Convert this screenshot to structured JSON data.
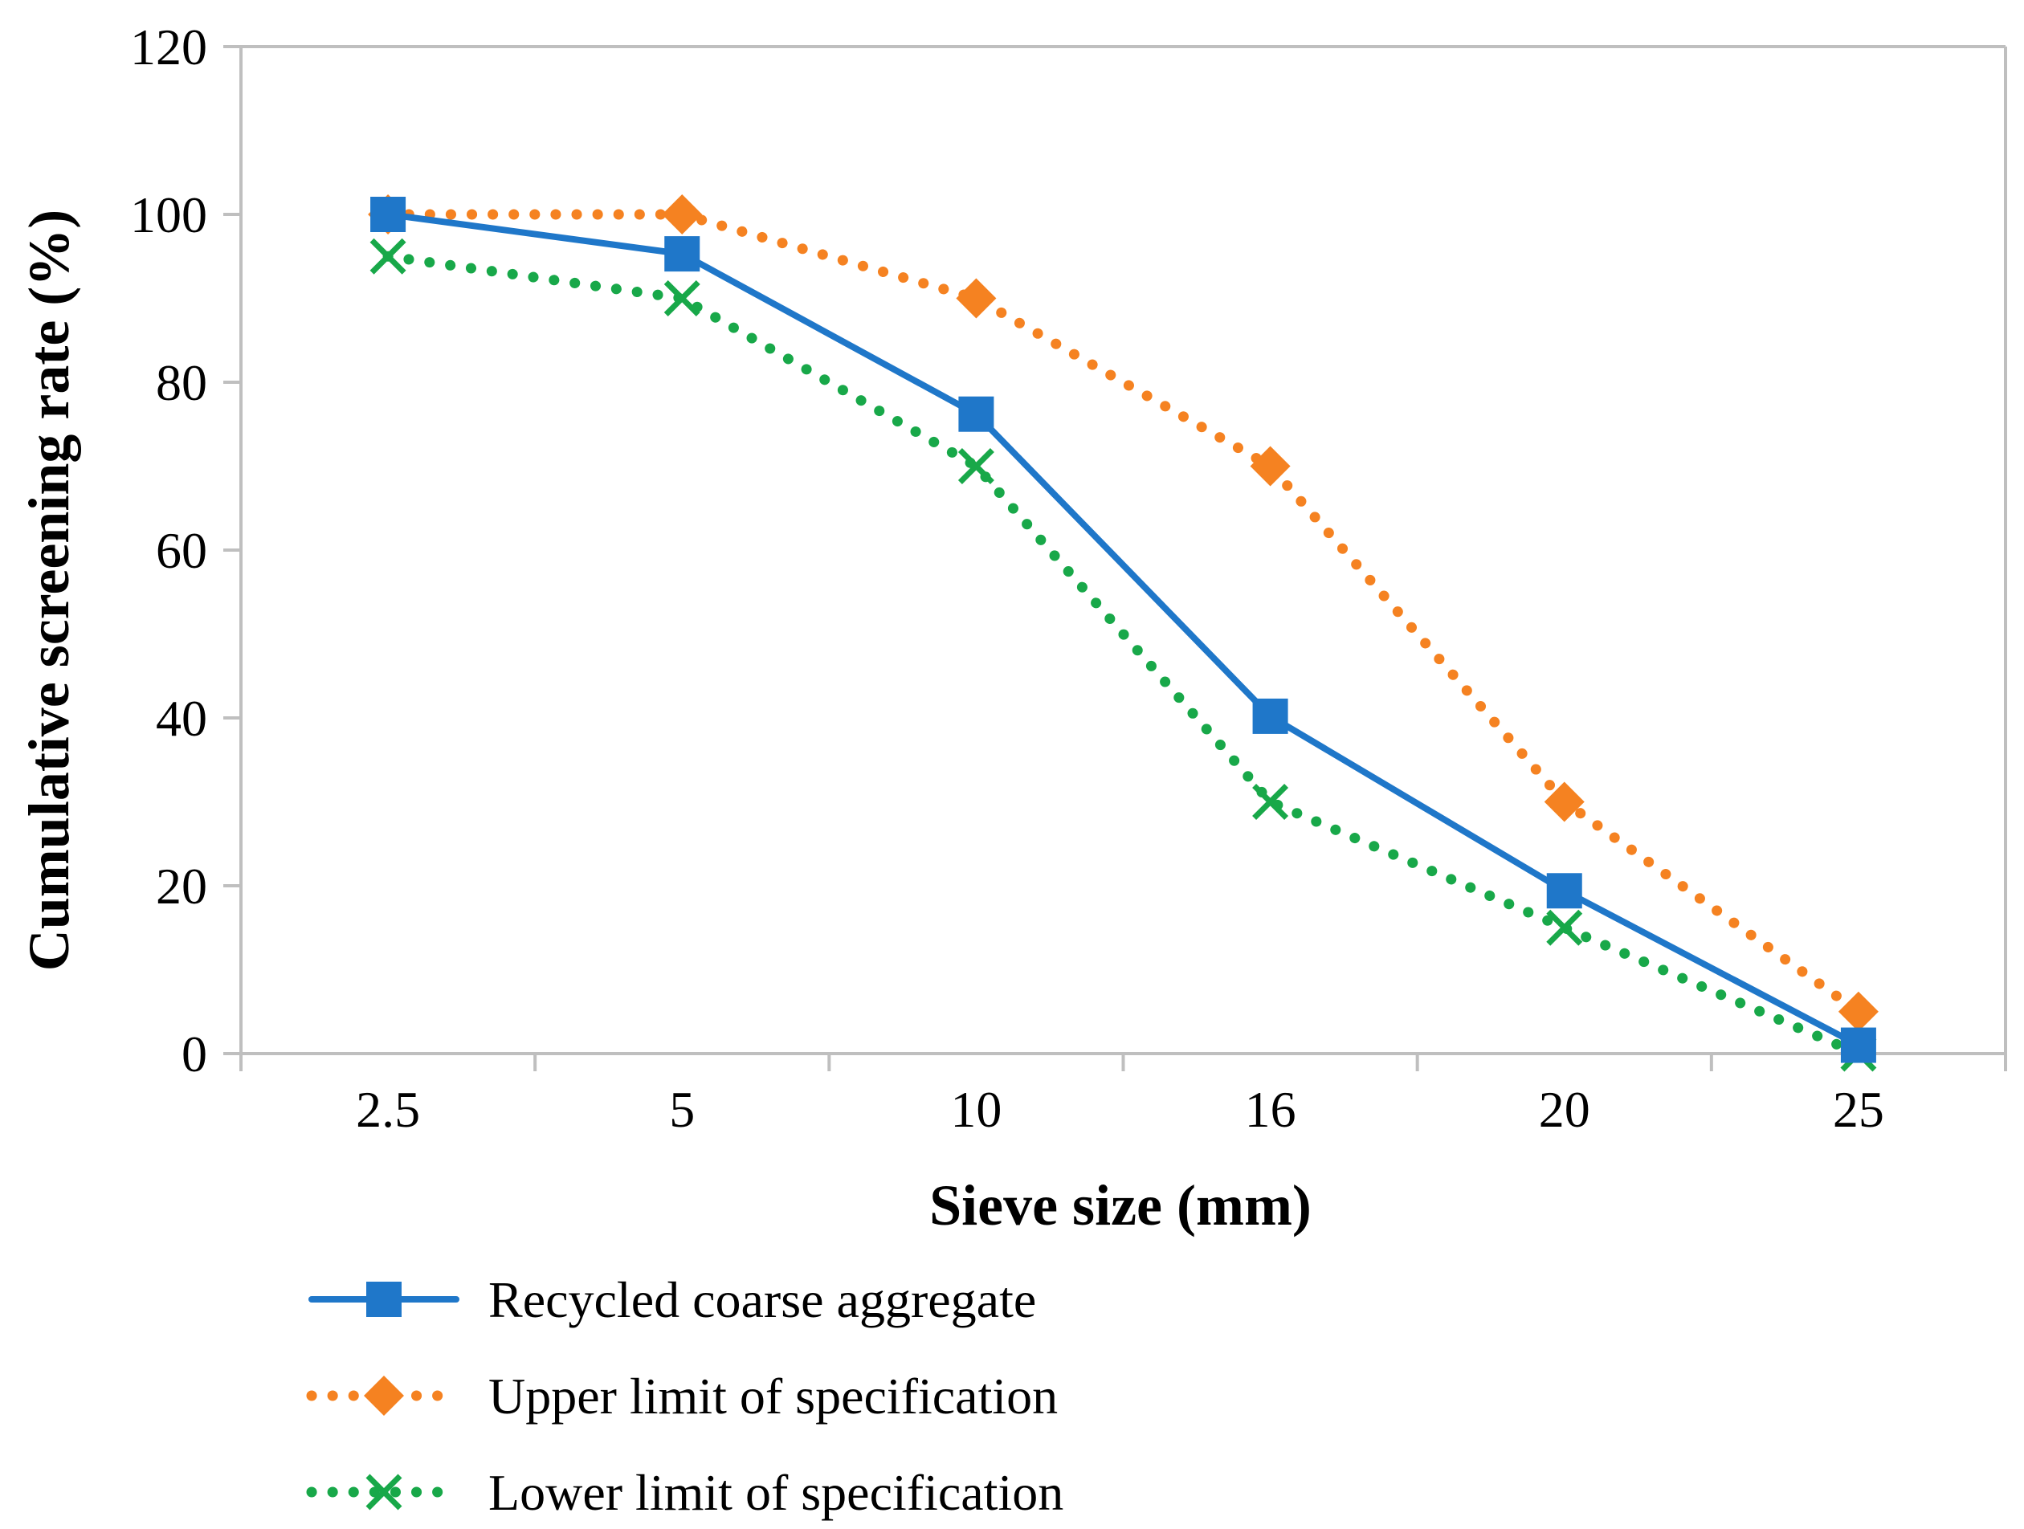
{
  "chart_data": {
    "type": "line",
    "title": "",
    "xlabel": "Sieve size (mm)",
    "ylabel": "Cumulative screening rate  (%)",
    "categories": [
      "2.5",
      "5",
      "10",
      "16",
      "20",
      "25"
    ],
    "ylim": [
      0,
      120
    ],
    "yticks": [
      "0",
      "20",
      "40",
      "60",
      "80",
      "100",
      "120"
    ],
    "grid": false,
    "legend_position": "bottom-left",
    "series": [
      {
        "name": "Recycled coarse aggregate",
        "values": [
          100,
          95.3,
          76.2,
          40.2,
          19.4,
          1.0
        ],
        "color": "#1F77C9",
        "line_style": "solid",
        "marker": "square"
      },
      {
        "name": "Upper limit of specification",
        "values": [
          100,
          100,
          90,
          70,
          30,
          5
        ],
        "color": "#F58221",
        "line_style": "dotted",
        "marker": "diamond"
      },
      {
        "name": "Lower limit of specification",
        "values": [
          95,
          90,
          70,
          30,
          15,
          0
        ],
        "color": "#18A849",
        "line_style": "dotted",
        "marker": "x"
      }
    ]
  }
}
